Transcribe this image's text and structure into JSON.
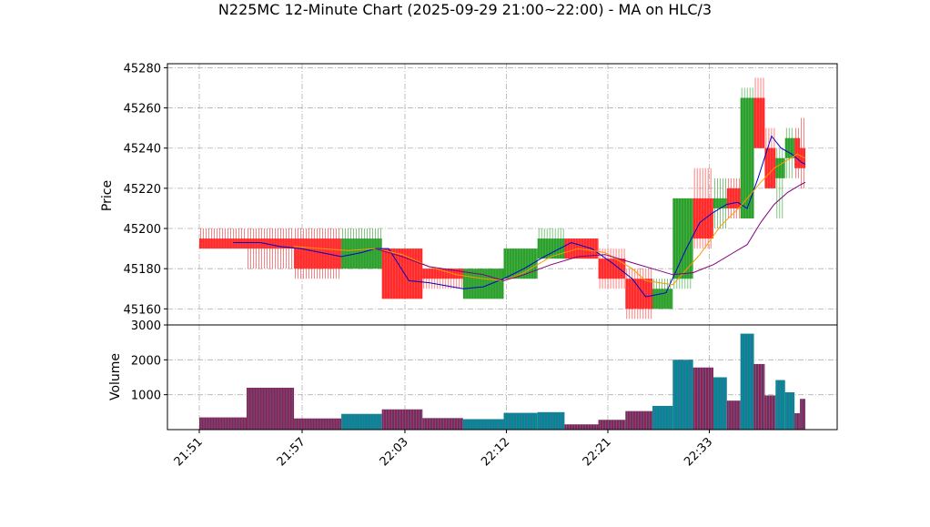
{
  "chart_data": {
    "type": "ohlc",
    "title": "N225MC 12-Minute Chart (2025-09-29 21:00~22:00) - MA on HLC/3",
    "price_panel": {
      "ylabel": "Price",
      "ylim": [
        45152,
        45282
      ],
      "yticks": [
        45160,
        45180,
        45200,
        45220,
        45240,
        45260,
        45280
      ],
      "grid": true
    },
    "volume_panel": {
      "ylabel": "Volume",
      "ylim": [
        0,
        3000
      ],
      "yticks": [
        1000,
        2000,
        3000
      ],
      "grid": true
    },
    "x_axis": {
      "tick_labels": [
        "21:51",
        "21:57",
        "22:03",
        "22:12",
        "22:21",
        "22:33"
      ],
      "tick_label_rotation": 45,
      "time_range_minutes": [
        0,
        45
      ]
    },
    "colors": {
      "up": "#2ca02c",
      "down": "#ff2a2a",
      "ma_fast": "#0000cc",
      "ma_mid": "#ff9900",
      "ma_slow": "#800080",
      "volume_up": "#008b8b",
      "volume_down": "#8b2252"
    },
    "candles": [
      {
        "t0": 0.0,
        "t1": 3.5,
        "open": 45195,
        "high": 45200,
        "low": 45190,
        "close": 45190,
        "volume": 350
      },
      {
        "t0": 3.5,
        "t1": 7.0,
        "open": 45195,
        "high": 45200,
        "low": 45180,
        "close": 45190,
        "volume": 1200
      },
      {
        "t0": 7.0,
        "t1": 10.5,
        "open": 45195,
        "high": 45200,
        "low": 45175,
        "close": 45180,
        "volume": 320
      },
      {
        "t0": 10.5,
        "t1": 13.5,
        "open": 45180,
        "high": 45200,
        "low": 45180,
        "close": 45195,
        "volume": 450
      },
      {
        "t0": 13.5,
        "t1": 16.5,
        "open": 45190,
        "high": 45190,
        "low": 45165,
        "close": 45165,
        "volume": 580
      },
      {
        "t0": 16.5,
        "t1": 19.5,
        "open": 45180,
        "high": 45180,
        "low": 45170,
        "close": 45175,
        "volume": 330
      },
      {
        "t0": 19.5,
        "t1": 22.5,
        "open": 45165,
        "high": 45180,
        "low": 45165,
        "close": 45180,
        "volume": 300
      },
      {
        "t0": 22.5,
        "t1": 25.0,
        "open": 45175,
        "high": 45190,
        "low": 45175,
        "close": 45190,
        "volume": 480
      },
      {
        "t0": 25.0,
        "t1": 27.0,
        "open": 45185,
        "high": 45200,
        "low": 45185,
        "close": 45195,
        "volume": 500
      },
      {
        "t0": 27.0,
        "t1": 29.5,
        "open": 45195,
        "high": 45195,
        "low": 45185,
        "close": 45185,
        "volume": 150
      },
      {
        "t0": 29.5,
        "t1": 31.5,
        "open": 45185,
        "high": 45190,
        "low": 45170,
        "close": 45175,
        "volume": 280
      },
      {
        "t0": 31.5,
        "t1": 33.5,
        "open": 45175,
        "high": 45180,
        "low": 45155,
        "close": 45160,
        "volume": 530
      },
      {
        "t0": 33.5,
        "t1": 35.0,
        "open": 45160,
        "high": 45175,
        "low": 45160,
        "close": 45170,
        "volume": 680
      },
      {
        "t0": 35.0,
        "t1": 36.5,
        "open": 45175,
        "high": 45215,
        "low": 45170,
        "close": 45215,
        "volume": 2000
      },
      {
        "t0": 36.5,
        "t1": 38.0,
        "open": 45215,
        "high": 45230,
        "low": 45190,
        "close": 45195,
        "volume": 1780
      },
      {
        "t0": 38.0,
        "t1": 39.0,
        "open": 45210,
        "high": 45225,
        "low": 45200,
        "close": 45215,
        "volume": 1500
      },
      {
        "t0": 39.0,
        "t1": 40.0,
        "open": 45220,
        "high": 45225,
        "low": 45205,
        "close": 45210,
        "volume": 830
      },
      {
        "t0": 40.0,
        "t1": 41.0,
        "open": 45205,
        "high": 45270,
        "low": 45205,
        "close": 45265,
        "volume": 2750
      },
      {
        "t0": 41.0,
        "t1": 41.8,
        "open": 45265,
        "high": 45275,
        "low": 45240,
        "close": 45240,
        "volume": 1880
      },
      {
        "t0": 41.8,
        "t1": 42.6,
        "open": 45240,
        "high": 45250,
        "low": 45220,
        "close": 45220,
        "volume": 980
      },
      {
        "t0": 42.6,
        "t1": 43.3,
        "open": 45225,
        "high": 45240,
        "low": 45205,
        "close": 45235,
        "volume": 1420
      },
      {
        "t0": 43.3,
        "t1": 44.0,
        "open": 45235,
        "high": 45250,
        "low": 45225,
        "close": 45245,
        "volume": 1070
      },
      {
        "t0": 44.0,
        "t1": 44.4,
        "open": 45245,
        "high": 45250,
        "low": 45225,
        "close": 45230,
        "volume": 470
      },
      {
        "t0": 44.4,
        "t1": 44.8,
        "open": 45240,
        "high": 45255,
        "low": 45220,
        "close": 45230,
        "volume": 880
      }
    ],
    "moving_averages": [
      {
        "key": "ma_fast",
        "points": [
          [
            2.5,
            45193
          ],
          [
            4.5,
            45193
          ],
          [
            6,
            45191
          ],
          [
            7.5,
            45190
          ],
          [
            9,
            45188
          ],
          [
            10.5,
            45186
          ],
          [
            12,
            45188
          ],
          [
            13,
            45190
          ],
          [
            14,
            45190
          ],
          [
            15.5,
            45174
          ],
          [
            17,
            45173
          ],
          [
            19.5,
            45170
          ],
          [
            21,
            45171
          ],
          [
            22.5,
            45175
          ],
          [
            24,
            45180
          ],
          [
            25.5,
            45186
          ],
          [
            27.5,
            45193
          ],
          [
            29,
            45190
          ],
          [
            30.5,
            45183
          ],
          [
            32,
            45175
          ],
          [
            33,
            45166
          ],
          [
            34.5,
            45168
          ],
          [
            36,
            45190
          ],
          [
            37,
            45203
          ],
          [
            38,
            45208
          ],
          [
            39,
            45212
          ],
          [
            39.8,
            45213
          ],
          [
            40.5,
            45210
          ],
          [
            41.3,
            45225
          ],
          [
            42.3,
            45246
          ],
          [
            43,
            45240
          ],
          [
            43.8,
            45237
          ],
          [
            44.5,
            45233
          ],
          [
            44.8,
            45232
          ]
        ]
      },
      {
        "key": "ma_mid",
        "points": [
          [
            7,
            45191
          ],
          [
            9,
            45190
          ],
          [
            11,
            45189
          ],
          [
            13,
            45190
          ],
          [
            15,
            45187
          ],
          [
            17,
            45181
          ],
          [
            19,
            45177
          ],
          [
            21,
            45175
          ],
          [
            22.5,
            45174
          ],
          [
            24,
            45178
          ],
          [
            26,
            45186
          ],
          [
            28,
            45190
          ],
          [
            30,
            45188
          ],
          [
            32,
            45180
          ],
          [
            33,
            45174
          ],
          [
            35,
            45172
          ],
          [
            37,
            45187
          ],
          [
            38.5,
            45201
          ],
          [
            40,
            45211
          ],
          [
            41.5,
            45223
          ],
          [
            42.5,
            45230
          ],
          [
            44.2,
            45237
          ],
          [
            44.8,
            45235
          ]
        ]
      },
      {
        "key": "ma_slow",
        "points": [
          [
            13,
            45190
          ],
          [
            15,
            45186
          ],
          [
            17,
            45181
          ],
          [
            19,
            45179
          ],
          [
            21,
            45177
          ],
          [
            22.5,
            45174
          ],
          [
            24,
            45177
          ],
          [
            26,
            45182
          ],
          [
            28,
            45186
          ],
          [
            30,
            45187
          ],
          [
            32,
            45183
          ],
          [
            33.5,
            45180
          ],
          [
            35,
            45177
          ],
          [
            36.5,
            45178
          ],
          [
            38,
            45182
          ],
          [
            39.5,
            45188
          ],
          [
            40.5,
            45192
          ],
          [
            41.5,
            45203
          ],
          [
            42.5,
            45212
          ],
          [
            43.5,
            45218
          ],
          [
            44.5,
            45222
          ],
          [
            44.8,
            45223
          ]
        ]
      }
    ]
  }
}
